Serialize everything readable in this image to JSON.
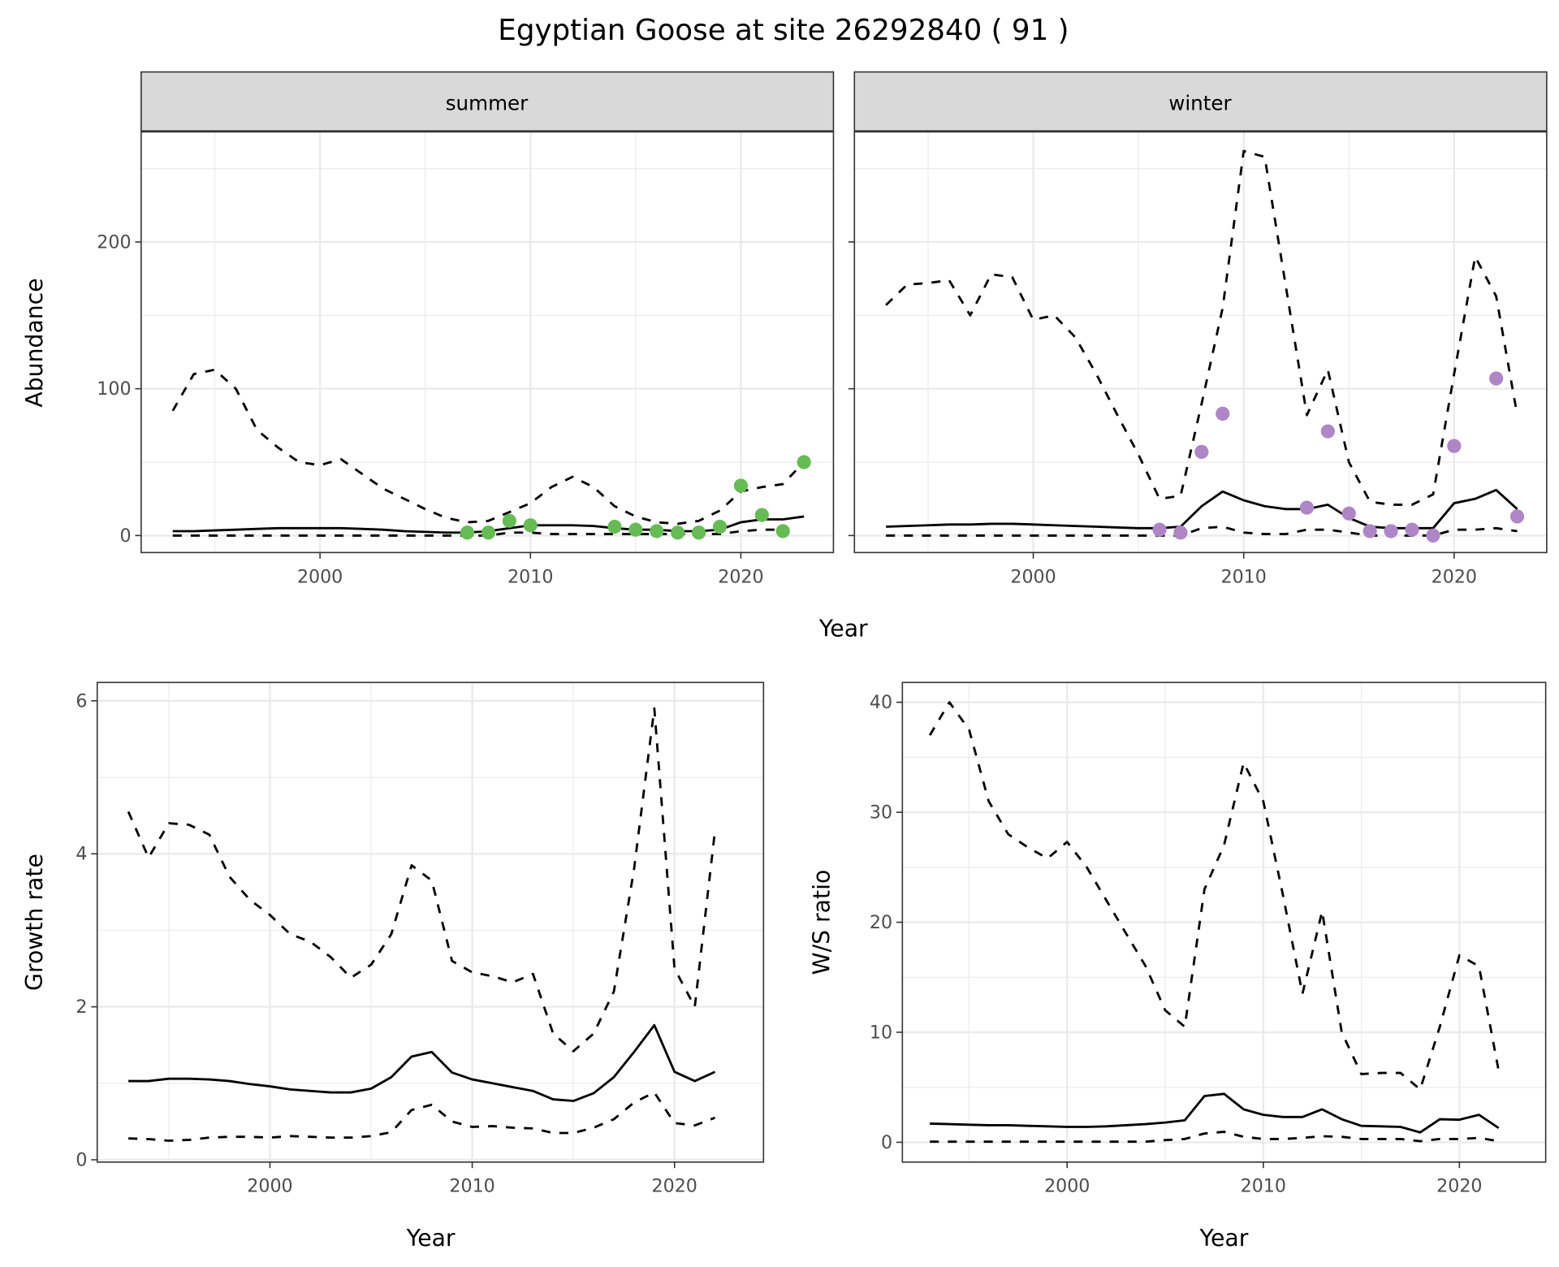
{
  "title": "Egyptian Goose at site 26292840 ( 91 )",
  "colors": {
    "summer_points": "#66bb55",
    "winter_points": "#ae86c6",
    "strip_bg": "#d9d9d9",
    "grid": "#ebebeb"
  },
  "chart_data": [
    {
      "type": "line",
      "facet": "summer",
      "strip_label": "summer",
      "xlabel": "Year",
      "ylabel": "Abundance",
      "xlim": [
        1991.5,
        2024.4
      ],
      "ylim": [
        -11.6,
        275
      ],
      "xticks": [
        2000,
        2010,
        2020
      ],
      "yticks": [
        0,
        100,
        200
      ],
      "x": [
        1993,
        1994,
        1995,
        1996,
        1997,
        1998,
        1999,
        2000,
        2001,
        2002,
        2003,
        2004,
        2005,
        2006,
        2007,
        2008,
        2009,
        2010,
        2011,
        2012,
        2013,
        2014,
        2015,
        2016,
        2017,
        2018,
        2019,
        2020,
        2021,
        2022,
        2023
      ],
      "series": [
        {
          "name": "upper",
          "style": "dashed",
          "values": [
            85,
            110,
            113,
            100,
            72,
            60,
            50,
            48,
            52,
            42,
            32,
            25,
            18,
            12,
            9,
            10,
            16,
            22,
            33,
            40,
            33,
            20,
            13,
            9,
            8,
            10,
            17,
            30,
            33,
            35,
            50
          ]
        },
        {
          "name": "estimate",
          "style": "solid",
          "values": [
            3,
            3,
            3.5,
            4,
            4.5,
            5,
            5,
            5,
            5,
            4.5,
            4,
            3,
            2.5,
            2,
            2,
            3,
            5,
            7,
            7,
            7,
            6.5,
            5,
            4,
            4,
            3,
            3,
            4,
            9,
            11,
            11,
            13
          ]
        },
        {
          "name": "lower",
          "style": "dashed",
          "values": [
            0,
            0,
            0,
            0,
            0,
            0,
            0,
            0,
            0,
            0,
            0,
            0,
            0,
            0,
            0,
            0,
            2,
            2,
            1,
            1,
            1,
            1,
            1,
            1,
            1,
            1,
            1,
            3,
            4,
            4,
            null
          ]
        }
      ],
      "points": {
        "x": [
          2007,
          2008,
          2009,
          2010,
          2014,
          2015,
          2016,
          2017,
          2018,
          2019,
          2020,
          2021,
          2022,
          2023
        ],
        "y": [
          2,
          2,
          10,
          7,
          6,
          4,
          3,
          2,
          2,
          6,
          34,
          14,
          3,
          50
        ]
      }
    },
    {
      "type": "line",
      "facet": "winter",
      "strip_label": "winter",
      "xlabel": "Year",
      "ylabel": "",
      "xlim": [
        1991.5,
        2024.4
      ],
      "ylim": [
        -11.6,
        275
      ],
      "xticks": [
        2000,
        2010,
        2020
      ],
      "yticks": [
        0,
        100,
        200
      ],
      "x": [
        1993,
        1994,
        1995,
        1996,
        1997,
        1998,
        1999,
        2000,
        2001,
        2002,
        2003,
        2004,
        2005,
        2006,
        2007,
        2008,
        2009,
        2010,
        2011,
        2012,
        2013,
        2014,
        2015,
        2016,
        2017,
        2018,
        2019,
        2020,
        2021,
        2022,
        2023
      ],
      "series": [
        {
          "name": "upper",
          "style": "dashed",
          "values": [
            157,
            171,
            172,
            174,
            150,
            178,
            176,
            147,
            150,
            135,
            110,
            82,
            55,
            25,
            27,
            90,
            155,
            262,
            258,
            170,
            82,
            113,
            50,
            23,
            21,
            21,
            28,
            110,
            190,
            163,
            82
          ]
        },
        {
          "name": "estimate",
          "style": "solid",
          "values": [
            6,
            6.5,
            7,
            7.5,
            7.5,
            8,
            8,
            7.5,
            7,
            6.5,
            6,
            5.5,
            5,
            5,
            6,
            20,
            30,
            24,
            20,
            18,
            18,
            21,
            12,
            6,
            5,
            5,
            5,
            22,
            25,
            31,
            18
          ]
        },
        {
          "name": "lower",
          "style": "dashed",
          "values": [
            0,
            0,
            0,
            0,
            0,
            0,
            0,
            0,
            0,
            0,
            0,
            0,
            0,
            0,
            0,
            5,
            6,
            2,
            1,
            1,
            4,
            4,
            2,
            0,
            0,
            0,
            0,
            4,
            4,
            5,
            3
          ]
        }
      ],
      "points": {
        "x": [
          2006,
          2007,
          2008,
          2009,
          2013,
          2014,
          2015,
          2016,
          2017,
          2018,
          2019,
          2020,
          2022,
          2023
        ],
        "y": [
          4,
          2,
          57,
          83,
          19,
          71,
          15,
          3,
          3,
          4,
          0,
          61,
          107,
          13
        ]
      }
    },
    {
      "type": "line",
      "facet": "growth",
      "xlabel": "Year",
      "ylabel": "Growth rate",
      "xlim": [
        1991.46,
        2024.4
      ],
      "ylim": [
        -0.03,
        6.24
      ],
      "xticks": [
        2000,
        2010,
        2020
      ],
      "yticks": [
        0,
        2,
        4,
        6
      ],
      "x": [
        1993,
        1994,
        1995,
        1996,
        1997,
        1998,
        1999,
        2000,
        2001,
        2002,
        2003,
        2004,
        2005,
        2006,
        2007,
        2008,
        2009,
        2010,
        2011,
        2012,
        2013,
        2014,
        2015,
        2016,
        2017,
        2018,
        2019,
        2020,
        2021,
        2022
      ],
      "series": [
        {
          "name": "upper",
          "style": "dashed",
          "values": [
            4.55,
            3.95,
            4.4,
            4.38,
            4.25,
            3.7,
            3.4,
            3.2,
            2.95,
            2.85,
            2.65,
            2.38,
            2.55,
            2.95,
            3.85,
            3.65,
            2.6,
            2.45,
            2.4,
            2.32,
            2.43,
            1.65,
            1.42,
            1.65,
            2.2,
            3.8,
            5.9,
            2.5,
            2.0,
            4.3
          ]
        },
        {
          "name": "estimate",
          "style": "solid",
          "values": [
            1.03,
            1.03,
            1.06,
            1.06,
            1.05,
            1.03,
            0.99,
            0.96,
            0.92,
            0.9,
            0.88,
            0.88,
            0.93,
            1.08,
            1.35,
            1.41,
            1.14,
            1.05,
            1.0,
            0.95,
            0.9,
            0.79,
            0.77,
            0.87,
            1.08,
            1.41,
            1.76,
            1.15,
            1.03,
            1.15
          ]
        },
        {
          "name": "lower",
          "style": "dashed",
          "values": [
            0.28,
            0.27,
            0.25,
            0.26,
            0.29,
            0.3,
            0.3,
            0.29,
            0.31,
            0.3,
            0.29,
            0.29,
            0.31,
            0.36,
            0.65,
            0.72,
            0.5,
            0.43,
            0.44,
            0.42,
            0.41,
            0.35,
            0.35,
            0.42,
            0.53,
            0.75,
            0.88,
            0.48,
            0.45,
            0.55
          ]
        }
      ]
    },
    {
      "type": "line",
      "facet": "ws",
      "xlabel": "Year",
      "ylabel": "W/S ratio",
      "xlim": [
        1991.6,
        2024.4
      ],
      "ylim": [
        -1.8,
        41.8
      ],
      "xticks": [
        2000,
        2010,
        2020
      ],
      "yticks": [
        0,
        10,
        20,
        30,
        40
      ],
      "x": [
        1993,
        1994,
        1995,
        1996,
        1997,
        1998,
        1999,
        2000,
        2001,
        2002,
        2003,
        2004,
        2005,
        2006,
        2007,
        2008,
        2009,
        2010,
        2011,
        2012,
        2013,
        2014,
        2015,
        2016,
        2017,
        2018,
        2019,
        2020,
        2021,
        2022
      ],
      "series": [
        {
          "name": "upper",
          "style": "dashed",
          "values": [
            37,
            40,
            37.5,
            31,
            28,
            26.8,
            25.8,
            27.3,
            25,
            22,
            19,
            16,
            12,
            10.5,
            23,
            27,
            34.5,
            31,
            22.5,
            13.5,
            21,
            10,
            6.2,
            6.3,
            6.3,
            4.8,
            10.5,
            17,
            16,
            6.5
          ]
        },
        {
          "name": "estimate",
          "style": "solid",
          "values": [
            1.7,
            1.65,
            1.6,
            1.55,
            1.55,
            1.5,
            1.45,
            1.4,
            1.4,
            1.45,
            1.55,
            1.65,
            1.8,
            2.0,
            4.2,
            4.4,
            3.0,
            2.5,
            2.3,
            2.3,
            3.0,
            2.1,
            1.5,
            1.45,
            1.4,
            0.9,
            2.1,
            2.05,
            2.5,
            1.3
          ]
        },
        {
          "name": "lower",
          "style": "dashed",
          "values": [
            0.05,
            0.05,
            0.05,
            0.05,
            0.05,
            0.05,
            0.05,
            0.05,
            0.05,
            0.05,
            0.05,
            0.05,
            0.2,
            0.3,
            0.8,
            0.95,
            0.5,
            0.3,
            0.3,
            0.4,
            0.55,
            0.5,
            0.3,
            0.3,
            0.3,
            0.1,
            0.3,
            0.3,
            0.4,
            0.1
          ]
        }
      ]
    }
  ]
}
